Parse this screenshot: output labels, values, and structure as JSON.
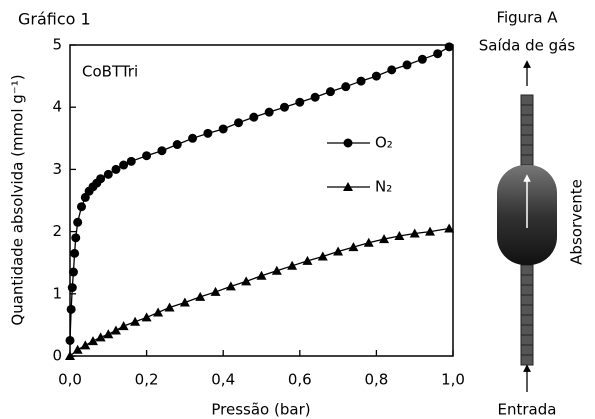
{
  "chart_data": {
    "type": "line",
    "title": "Gráfico 1",
    "annotation": "CoBTTri",
    "x_label": "Pressão (bar)",
    "y_label": "Quantidade absolvida (mmol g⁻¹)",
    "xlim": [
      0,
      1
    ],
    "ylim": [
      0,
      5
    ],
    "xticks": [
      {
        "value": 0,
        "label": "0,0"
      },
      {
        "value": 0.2,
        "label": "0,2"
      },
      {
        "value": 0.4,
        "label": "0,4"
      },
      {
        "value": 0.6,
        "label": "0,6"
      },
      {
        "value": 0.8,
        "label": "0,8"
      },
      {
        "value": 1,
        "label": "1,0"
      }
    ],
    "yticks": [
      0,
      1,
      2,
      3,
      4,
      5
    ],
    "series": [
      {
        "name": "O₂",
        "color": "#000000",
        "marker": "circle",
        "x": [
          0.0,
          0.003,
          0.006,
          0.009,
          0.012,
          0.015,
          0.02,
          0.03,
          0.04,
          0.05,
          0.06,
          0.07,
          0.08,
          0.1,
          0.12,
          0.14,
          0.16,
          0.2,
          0.24,
          0.28,
          0.32,
          0.36,
          0.4,
          0.44,
          0.48,
          0.52,
          0.56,
          0.6,
          0.64,
          0.68,
          0.72,
          0.76,
          0.8,
          0.84,
          0.88,
          0.92,
          0.96,
          0.99
        ],
        "values": [
          0.25,
          0.75,
          1.1,
          1.35,
          1.65,
          1.9,
          2.15,
          2.4,
          2.55,
          2.65,
          2.72,
          2.78,
          2.85,
          2.92,
          3.0,
          3.07,
          3.13,
          3.22,
          3.3,
          3.4,
          3.5,
          3.58,
          3.65,
          3.75,
          3.84,
          3.92,
          4.0,
          4.08,
          4.16,
          4.25,
          4.33,
          4.42,
          4.5,
          4.6,
          4.68,
          4.77,
          4.86,
          4.97
        ]
      },
      {
        "name": "N₂",
        "color": "#000000",
        "marker": "triangle",
        "x": [
          0.0,
          0.02,
          0.04,
          0.06,
          0.08,
          0.1,
          0.12,
          0.14,
          0.17,
          0.2,
          0.23,
          0.26,
          0.3,
          0.34,
          0.38,
          0.42,
          0.46,
          0.5,
          0.54,
          0.58,
          0.62,
          0.66,
          0.7,
          0.74,
          0.78,
          0.82,
          0.86,
          0.9,
          0.94,
          0.99
        ],
        "values": [
          0.0,
          0.1,
          0.17,
          0.24,
          0.3,
          0.35,
          0.41,
          0.48,
          0.55,
          0.62,
          0.7,
          0.78,
          0.86,
          0.95,
          1.03,
          1.12,
          1.2,
          1.29,
          1.37,
          1.45,
          1.53,
          1.6,
          1.68,
          1.75,
          1.82,
          1.88,
          1.93,
          1.97,
          2.0,
          2.05
        ]
      }
    ]
  },
  "figure": {
    "title": "Figura A",
    "outlet": "Saída de gás",
    "absorber": "Absorvente",
    "inlet": "Entrada"
  }
}
